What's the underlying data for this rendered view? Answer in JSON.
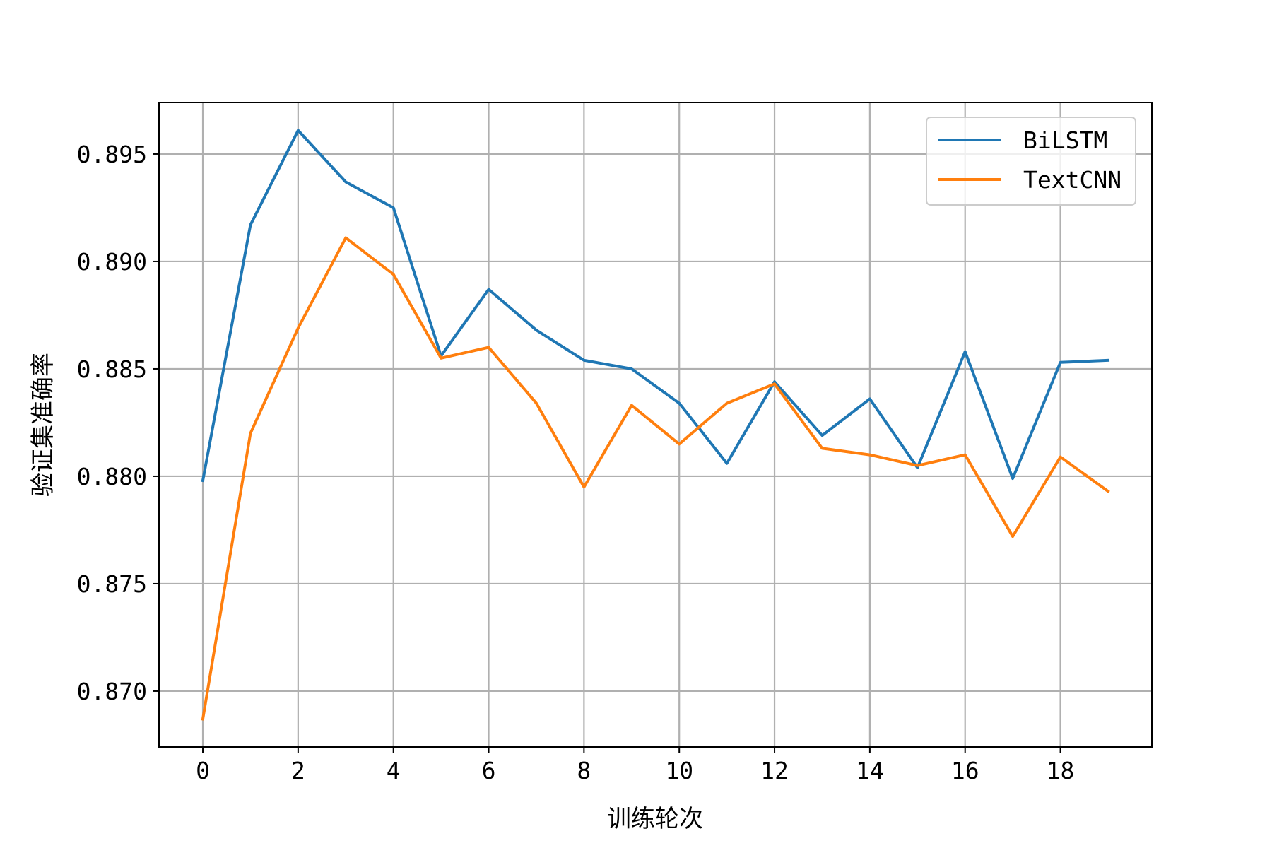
{
  "chart_data": {
    "type": "line",
    "xlabel": "训练轮次",
    "ylabel": "验证集准确率",
    "x": [
      0,
      1,
      2,
      3,
      4,
      5,
      6,
      7,
      8,
      9,
      10,
      11,
      12,
      13,
      14,
      15,
      16,
      17,
      18,
      19
    ],
    "xlim": [
      -0.92,
      19.92
    ],
    "ylim": [
      0.8674,
      0.8974
    ],
    "xticks": [
      0,
      2,
      4,
      6,
      8,
      10,
      12,
      14,
      16,
      18
    ],
    "xtick_labels": [
      "0",
      "2",
      "4",
      "6",
      "8",
      "10",
      "12",
      "14",
      "16",
      "18"
    ],
    "yticks": [
      0.87,
      0.875,
      0.88,
      0.885,
      0.89,
      0.895
    ],
    "ytick_labels": [
      "0.870",
      "0.875",
      "0.880",
      "0.885",
      "0.890",
      "0.895"
    ],
    "grid": true,
    "legend_position": "top-right",
    "series": [
      {
        "name": "BiLSTM",
        "color": "#1f77b4",
        "values": [
          0.8798,
          0.8917,
          0.8961,
          0.8937,
          0.8925,
          0.8856,
          0.8887,
          0.8868,
          0.8854,
          0.885,
          0.8834,
          0.8806,
          0.8844,
          0.8819,
          0.8836,
          0.8804,
          0.8858,
          0.8799,
          0.8853,
          0.8854
        ]
      },
      {
        "name": "TextCNN",
        "color": "#ff7f0e",
        "values": [
          0.8687,
          0.882,
          0.8869,
          0.8911,
          0.8894,
          0.8855,
          0.886,
          0.8834,
          0.8795,
          0.8833,
          0.8815,
          0.8834,
          0.8843,
          0.8813,
          0.881,
          0.8805,
          0.881,
          0.8772,
          0.8809,
          0.8793
        ]
      }
    ]
  }
}
